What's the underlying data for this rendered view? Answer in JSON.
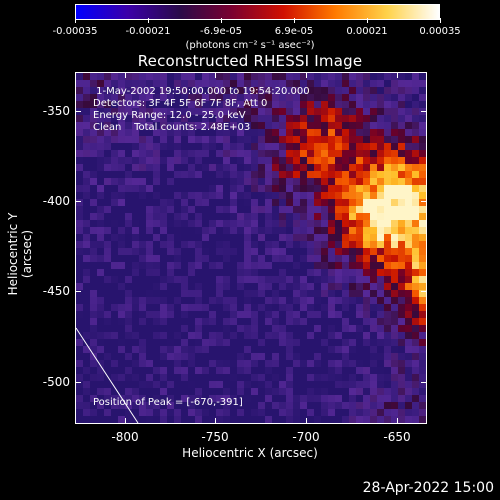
{
  "colorbar": {
    "ticks": [
      "-0.00035",
      "-0.00021",
      "-6.9e-05",
      "6.9e-05",
      "0.00021",
      "0.00035"
    ],
    "units": "(photons cm⁻² s⁻¹ asec⁻²)",
    "colors": [
      "#0000ff",
      "#3b00a8",
      "#2a0a4a",
      "#7a0030",
      "#d01000",
      "#ff7a00",
      "#ffd24a",
      "#ffffff"
    ]
  },
  "title": "Reconstructed RHESSI Image",
  "info": {
    "line1": " 1-May-2002 19:50:00.000 to 19:54:20.000",
    "line2": "Detectors: 3F 4F 5F 6F 7F 8F, Att 0",
    "line3": "Energy Range: 12.0 - 25.0 keV",
    "line4": "Clean    Total counts: 2.48E+03"
  },
  "peak": "Position of Peak = [-670,-391]",
  "axes": {
    "xlabel": "Heliocentric X (arcsec)",
    "ylabel": "Heliocentric Y (arcsec)",
    "xticks": [
      "-800",
      "-750",
      "-700",
      "-650"
    ],
    "yticks": [
      "-350",
      "-400",
      "-450",
      "-500"
    ],
    "xrange": [
      -827,
      -633
    ],
    "yrange": [
      -525,
      -331
    ]
  },
  "footer": "28-Apr-2022 15:00"
}
